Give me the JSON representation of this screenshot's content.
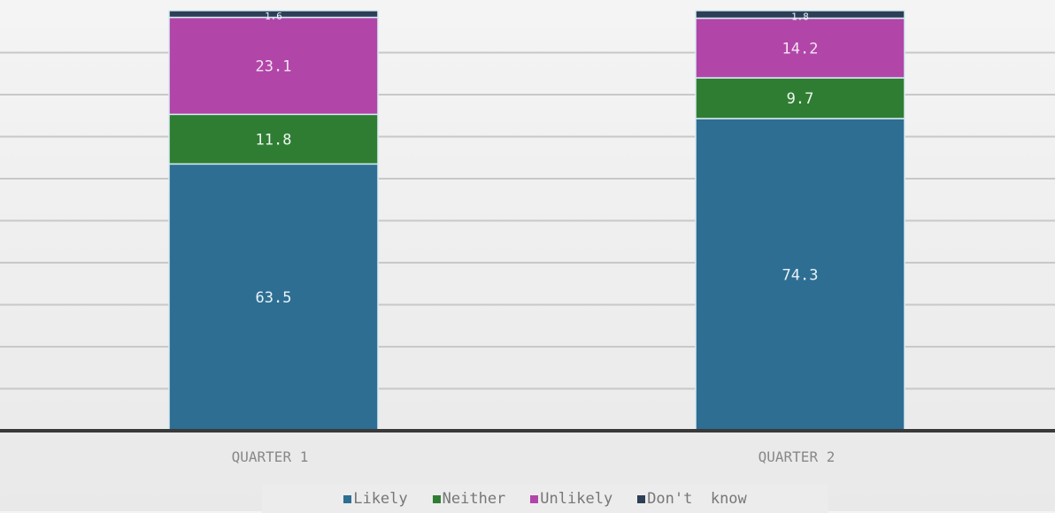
{
  "chart_data": {
    "type": "bar",
    "stacked": true,
    "categories": [
      "QUARTER 1",
      "QUARTER 2"
    ],
    "series": [
      {
        "name": "Likely",
        "values": [
          63.5,
          74.3
        ],
        "color": "#2e6e92"
      },
      {
        "name": "Neither",
        "values": [
          11.8,
          9.7
        ],
        "color": "#2f7d33"
      },
      {
        "name": "Unlikely",
        "values": [
          23.1,
          14.2
        ],
        "color": "#b146a8"
      },
      {
        "name": "Don't  know",
        "values": [
          1.6,
          1.8
        ],
        "color": "#2d3e57"
      }
    ],
    "ylim": [
      0,
      100
    ],
    "grid": true,
    "legend_position": "bottom"
  }
}
